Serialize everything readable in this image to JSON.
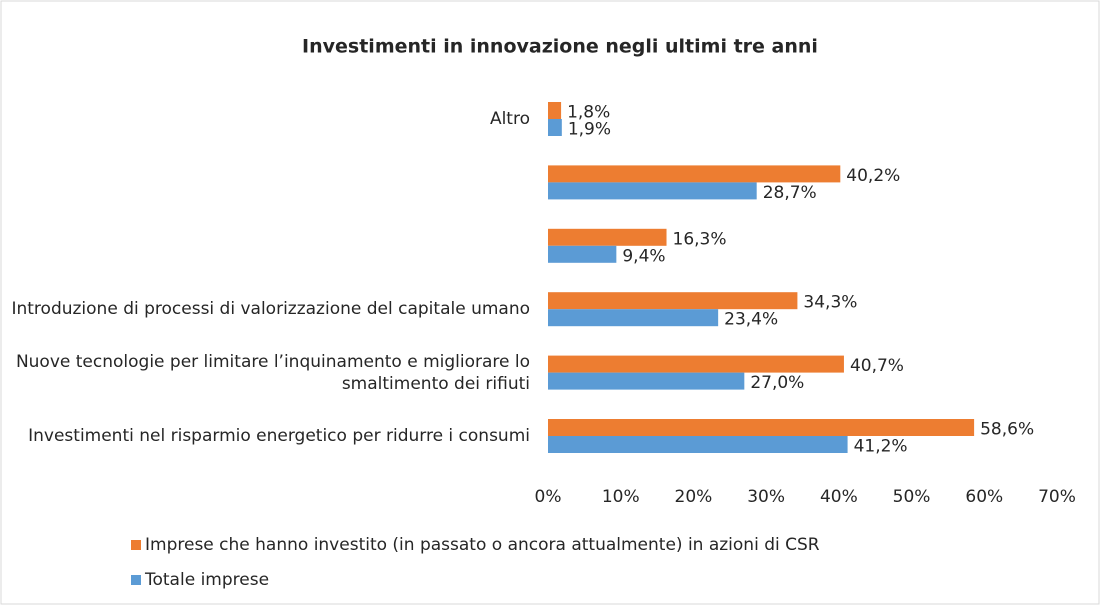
{
  "chart_data": {
    "type": "hbar",
    "title": "Investimenti in innovazione negli ultimi tre anni",
    "categories": [
      "Altro",
      null,
      null,
      "Introduzione di processi di valorizzazione del capitale umano",
      "Nuove tecnologie per limitare l’inquinamento e migliorare lo smaltimento dei rifiuti",
      "Investimenti nel risparmio energetico per ridurre i consumi"
    ],
    "series": [
      {
        "name": "Imprese che hanno investito (in passato o ancora attualmente) in azioni di CSR",
        "color": "#ed7d31",
        "values": [
          1.8,
          40.2,
          16.3,
          34.3,
          40.7,
          58.6
        ],
        "value_labels": [
          "1,8%",
          "40,2%",
          "16,3%",
          "34,3%",
          "40,7%",
          "58,6%"
        ]
      },
      {
        "name": "Totale imprese",
        "color": "#5b9bd5",
        "values": [
          1.9,
          28.7,
          9.4,
          23.4,
          27.0,
          41.2
        ],
        "value_labels": [
          "1,9%",
          "28,7%",
          "9,4%",
          "23,4%",
          "27,0%",
          "41,2%"
        ]
      }
    ],
    "xlim": [
      0,
      70
    ],
    "xticks": [
      {
        "value": 0,
        "label": "0%"
      },
      {
        "value": 10,
        "label": "10%"
      },
      {
        "value": 20,
        "label": "20%"
      },
      {
        "value": 30,
        "label": "30%"
      },
      {
        "value": 40,
        "label": "40%"
      },
      {
        "value": 50,
        "label": "50%"
      },
      {
        "value": 60,
        "label": "60%"
      },
      {
        "value": 70,
        "label": "70%"
      }
    ],
    "grid": false,
    "legend": "bottom"
  }
}
